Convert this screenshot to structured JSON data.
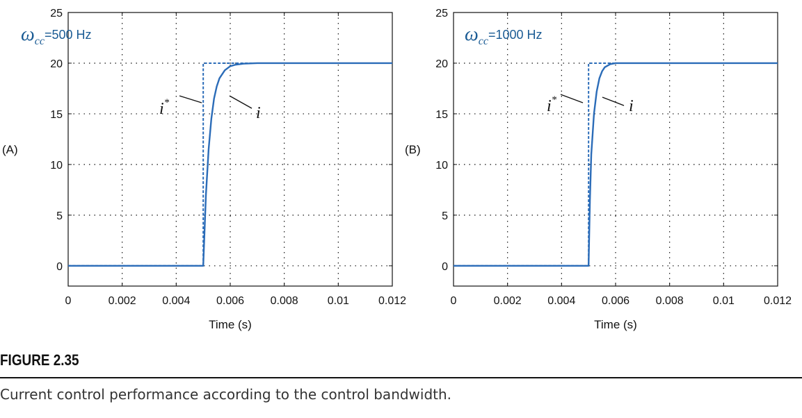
{
  "figure": {
    "number": "FIGURE 2.35",
    "caption": "Current control performance according to the control bandwidth."
  },
  "colors": {
    "series": "#2b6cb8",
    "annotation": "#1a5b94",
    "grid": "#111111"
  },
  "chart_data": [
    {
      "type": "line",
      "panel_label": "(A)",
      "xlabel": "Time (s)",
      "ylabel": "",
      "xlim": [
        0,
        0.012
      ],
      "ylim": [
        -2,
        25
      ],
      "xticks": [
        0,
        0.002,
        0.004,
        0.006,
        0.008,
        0.01,
        0.012
      ],
      "xtick_labels": [
        "0",
        "0.002",
        "0.004",
        "0.006",
        "0.008",
        "0.01",
        "0.012"
      ],
      "yticks": [
        0,
        5,
        10,
        15,
        20,
        25
      ],
      "ytick_labels": [
        "0",
        "5",
        "10",
        "15",
        "20",
        "25"
      ],
      "grid": true,
      "annotation": {
        "symbol": "ω",
        "subscript": "cc",
        "value": "=500 Hz"
      },
      "series": [
        {
          "name": "i*",
          "style": "dashed",
          "x": [
            0,
            0.005,
            0.005,
            0.012
          ],
          "y": [
            0,
            0,
            20,
            20
          ]
        },
        {
          "name": "i",
          "style": "solid",
          "x": [
            0,
            0.005,
            0.0051,
            0.0052,
            0.0053,
            0.0054,
            0.0055,
            0.0056,
            0.0058,
            0.006,
            0.0062,
            0.0065,
            0.007,
            0.008,
            0.012
          ],
          "y": [
            0,
            0,
            7.0,
            11.5,
            14.5,
            16.5,
            17.7,
            18.5,
            19.3,
            19.7,
            19.85,
            19.95,
            20,
            20,
            20
          ]
        }
      ],
      "series_labels": [
        {
          "text": "i",
          "sup": "*"
        },
        {
          "text": "i",
          "sup": ""
        }
      ]
    },
    {
      "type": "line",
      "panel_label": "(B)",
      "xlabel": "Time (s)",
      "ylabel": "",
      "xlim": [
        0,
        0.012
      ],
      "ylim": [
        -2,
        25
      ],
      "xticks": [
        0,
        0.002,
        0.004,
        0.006,
        0.008,
        0.01,
        0.012
      ],
      "xtick_labels": [
        "0",
        "0.002",
        "0.004",
        "0.006",
        "0.008",
        "0.01",
        "0.012"
      ],
      "yticks": [
        0,
        5,
        10,
        15,
        20,
        25
      ],
      "ytick_labels": [
        "0",
        "5",
        "10",
        "15",
        "20",
        "25"
      ],
      "grid": true,
      "annotation": {
        "symbol": "ω",
        "subscript": "cc",
        "value": "=1000 Hz"
      },
      "series": [
        {
          "name": "i*",
          "style": "dashed",
          "x": [
            0,
            0.005,
            0.005,
            0.012
          ],
          "y": [
            0,
            0,
            20,
            20
          ]
        },
        {
          "name": "i",
          "style": "solid",
          "x": [
            0,
            0.005,
            0.00505,
            0.0051,
            0.0052,
            0.0053,
            0.0054,
            0.0055,
            0.0056,
            0.0058,
            0.006,
            0.007,
            0.012
          ],
          "y": [
            0,
            0,
            6.5,
            11.0,
            15.0,
            17.2,
            18.5,
            19.2,
            19.6,
            19.9,
            20,
            20,
            20
          ]
        }
      ],
      "series_labels": [
        {
          "text": "i",
          "sup": "*"
        },
        {
          "text": "i",
          "sup": ""
        }
      ]
    }
  ]
}
